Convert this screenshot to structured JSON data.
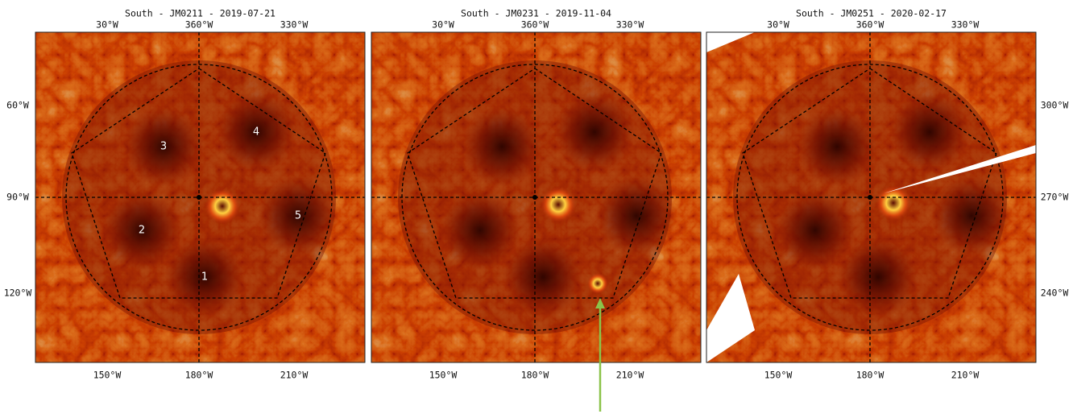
{
  "panels": [
    {
      "title": "South - JM0211 - 2019-07-21",
      "top_labels": [
        "30°W",
        "360°W",
        "330°W"
      ],
      "bottom_labels": [
        "150°W",
        "180°W",
        "210°W"
      ],
      "vortex_labels": [
        "1",
        "2",
        "3",
        "4",
        "5"
      ]
    },
    {
      "title": "South - JM0231 - 2019-11-04",
      "top_labels": [
        "30°W",
        "360°W",
        "330°W"
      ],
      "bottom_labels": [
        "150°W",
        "180°W",
        "210°W"
      ]
    },
    {
      "title": "South - JM0251 - 2020-02-17",
      "top_labels": [
        "30°W",
        "360°W",
        "330°W"
      ],
      "bottom_labels": [
        "150°W",
        "180°W",
        "210°W"
      ]
    }
  ],
  "left_labels": [
    "60°W",
    "90°W",
    "120°W"
  ],
  "right_labels": [
    "300°W",
    "270°W",
    "240°W"
  ]
}
